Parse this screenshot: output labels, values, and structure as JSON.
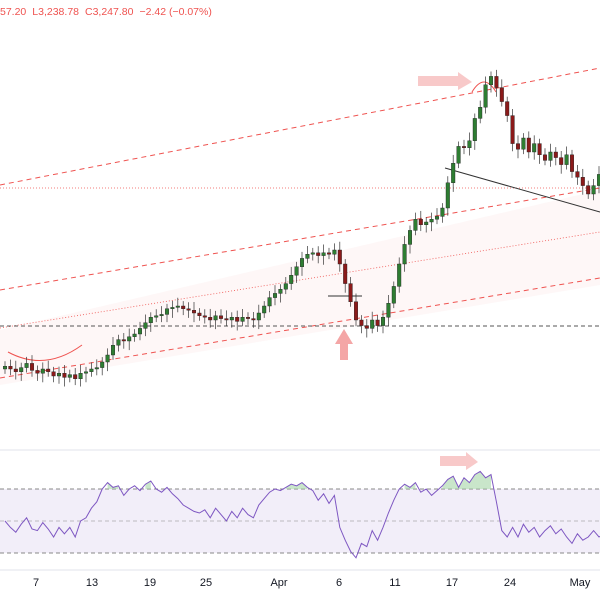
{
  "legend": {
    "high_fragment": "57.20",
    "low": "L3,238.78",
    "close": "C3,247.80",
    "change": "−2.42 (−0.07%)"
  },
  "chart_data": {
    "type": "candlestick",
    "x_tick_labels": [
      "7",
      "13",
      "19",
      "25",
      "Apr",
      "6",
      "11",
      "17",
      "24",
      "May"
    ],
    "colors": {
      "up": "#2e7d32",
      "down": "#8b1a1a",
      "channel": "#ef5350",
      "rsi": "#7e57c2"
    },
    "price_panel": {
      "closes": [
        1.7,
        1.5,
        1.3,
        1.6,
        1.9,
        1.4,
        1.2,
        1.5,
        1.3,
        1.0,
        1.2,
        0.9,
        1.1,
        0.8,
        1.2,
        1.3,
        1.5,
        1.6,
        2.0,
        2.5,
        3.2,
        3.6,
        3.5,
        3.8,
        4.0,
        4.4,
        4.8,
        5.2,
        5.3,
        5.4,
        5.8,
        5.9,
        6.0,
        5.8,
        5.7,
        5.5,
        5.3,
        5.2,
        5.0,
        5.3,
        5.1,
        5.0,
        5.2,
        4.9,
        5.2,
        5.1,
        5.0,
        5.5,
        6.0,
        6.6,
        6.9,
        7.2,
        7.6,
        8.2,
        8.8,
        9.4,
        9.7,
        9.8,
        9.6,
        9.8,
        9.7,
        10.0,
        9.0,
        7.6,
        6.3,
        5.0,
        4.6,
        4.4,
        5.0,
        4.6,
        5.2,
        6.2,
        7.4,
        9.0,
        10.4,
        11.4,
        12.2,
        11.8,
        12.0,
        12.2,
        12.4,
        13.0,
        14.8,
        16.2,
        17.4,
        17.3,
        17.8,
        19.4,
        20.2,
        21.8,
        22.4,
        21.6,
        20.6,
        19.6,
        17.6,
        17.2,
        18.0,
        17.0,
        17.6,
        16.8,
        16.4,
        17.0,
        16.6,
        16.1,
        16.8,
        15.6,
        15.2,
        14.6,
        14.0,
        14.6,
        15.4,
        16.0
      ],
      "annotations": [
        "channel-top",
        "channel-mid",
        "channel-bottom",
        "horizontal-support",
        "descending-trendline",
        "bottom-arrow",
        "peak-arrow"
      ]
    },
    "rsi_panel": {
      "values": [
        50,
        46,
        43,
        48,
        52,
        45,
        44,
        49,
        45,
        40,
        46,
        42,
        46,
        40,
        50,
        52,
        58,
        62,
        70,
        74,
        71,
        72,
        66,
        70,
        72,
        69,
        73,
        75,
        70,
        68,
        71,
        67,
        64,
        60,
        58,
        56,
        55,
        57,
        52,
        58,
        54,
        50,
        56,
        52,
        58,
        54,
        52,
        60,
        64,
        68,
        70,
        69,
        71,
        73,
        72,
        74,
        71,
        69,
        63,
        67,
        61,
        66,
        46,
        38,
        31,
        27,
        36,
        34,
        44,
        38,
        46,
        55,
        63,
        70,
        73,
        71,
        74,
        68,
        70,
        66,
        69,
        72,
        76,
        78,
        71,
        77,
        74,
        79,
        81,
        77,
        79,
        62,
        44,
        40,
        46,
        40,
        48,
        43,
        46,
        40,
        44,
        47,
        42,
        45,
        40,
        36,
        42,
        38,
        40,
        44,
        40,
        42
      ],
      "levels": [
        70,
        50,
        30
      ]
    }
  }
}
